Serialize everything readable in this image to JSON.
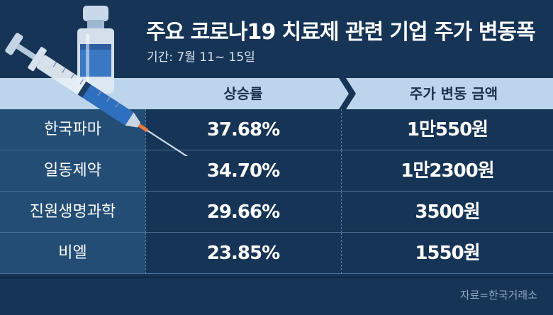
{
  "header": {
    "title": "주요 코로나19 치료제 관련 기업 주가 변동폭",
    "subtitle": "기간: 7월 11~ 15일"
  },
  "table_head": {
    "rate": "상승률",
    "amount": "주가 변동 금액"
  },
  "footer": {
    "source": "자료=한국거래소"
  },
  "chart_data": {
    "type": "table",
    "title": "주요 코로나19 치료제 관련 기업 주가 변동폭",
    "subtitle": "기간: 7월 11~ 15일",
    "columns": [
      "상승률",
      "주가 변동 금액"
    ],
    "rows": [
      {
        "company": "한국파마",
        "rate": "37.68%",
        "amount": "1만550원"
      },
      {
        "company": "일동제약",
        "rate": "34.70%",
        "amount": "1만2300원"
      },
      {
        "company": "진원생명과학",
        "rate": "29.66%",
        "amount": "3500원"
      },
      {
        "company": "비엘",
        "rate": "23.85%",
        "amount": "1550원"
      }
    ]
  },
  "colors": {
    "background": "#163455",
    "label_column": "#234d75",
    "header_band": "#bcd5ec",
    "header_text": "#1c3150"
  },
  "icons": [
    "syringe-icon",
    "vaccine-vial-icon"
  ]
}
